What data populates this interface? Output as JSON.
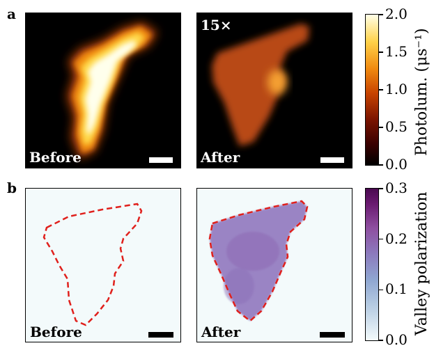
{
  "panels": {
    "a": {
      "letter": "a",
      "left_label": "Before",
      "right_label": "After",
      "magnification": "15×"
    },
    "b": {
      "letter": "b",
      "left_label": "Before",
      "right_label": "After"
    }
  },
  "colorbar_a": {
    "title_html": "Photolum. (μs⁻¹)",
    "ticks": [
      "2.0",
      "1.5",
      "1.0",
      "0.5",
      "0.0"
    ],
    "range": [
      0,
      2.0
    ],
    "colors": [
      "#000000",
      "#3a0000",
      "#7a1400",
      "#c84400",
      "#f08a10",
      "#ffd24a",
      "#ffffe8"
    ]
  },
  "colorbar_b": {
    "title": "Valley polarization",
    "ticks": [
      "0.3",
      "0.2",
      "0.1",
      "0.0"
    ],
    "range": [
      0,
      0.3
    ],
    "colors": [
      "#f3fafb",
      "#b8cde3",
      "#8fa6d1",
      "#8c78bc",
      "#8e4fa0",
      "#6a1a70",
      "#4a0a50"
    ]
  },
  "colors": {
    "outline": "#e0201c",
    "scalebar_light": "#ffffff",
    "scalebar_dark": "#000000"
  }
}
